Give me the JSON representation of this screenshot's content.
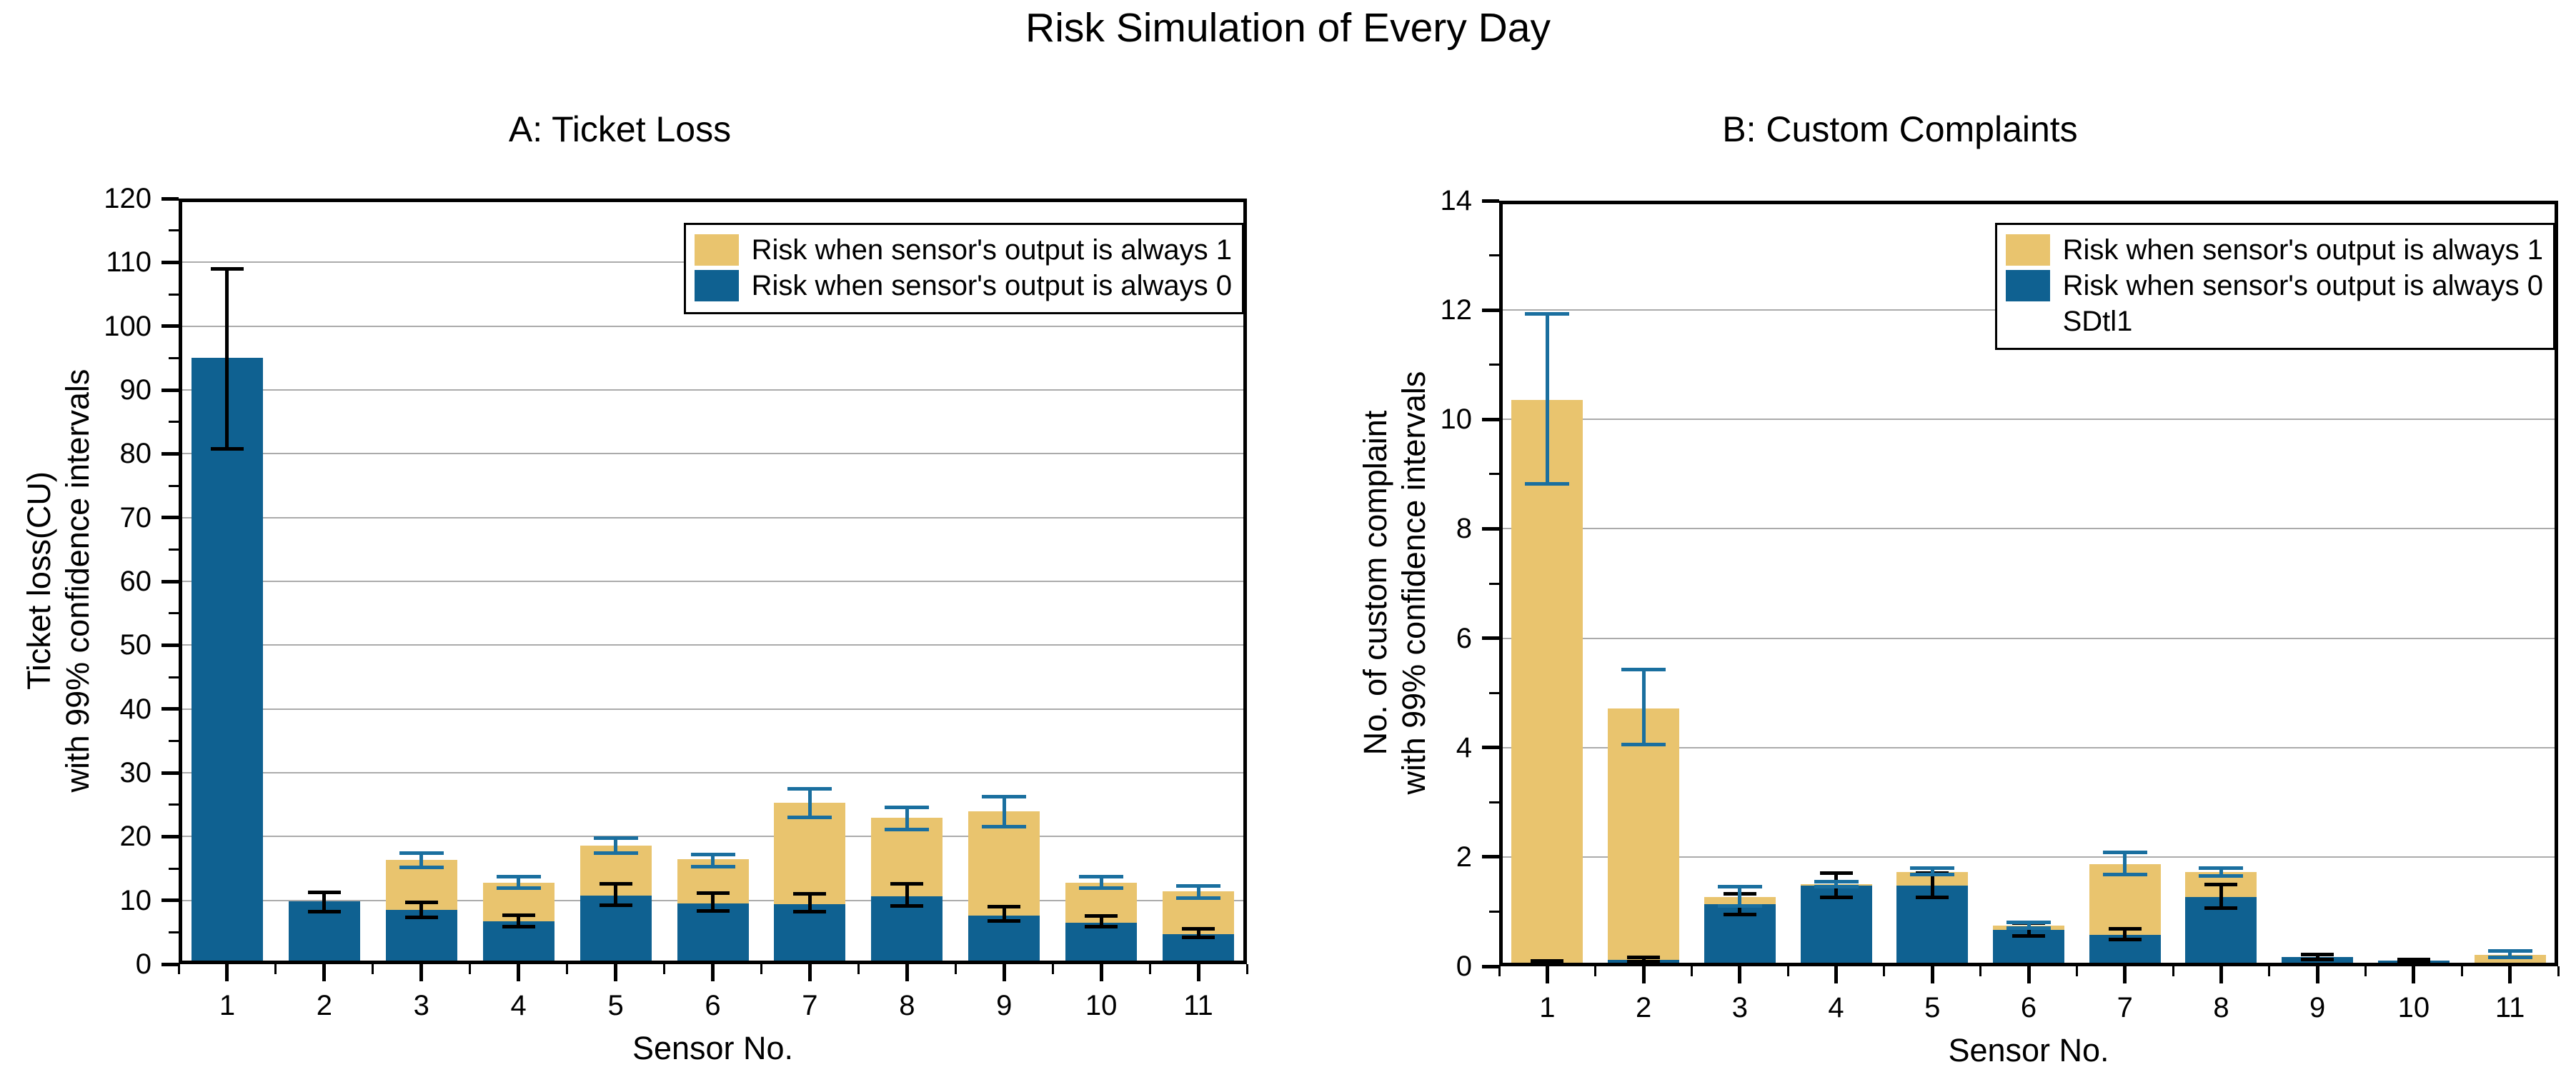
{
  "title": "Risk Simulation of Every Day",
  "colors": {
    "always1_fill": "#E9C46E",
    "always0_fill": "#0F6191",
    "err_on_always1": "#1A6F9F",
    "err_on_always0": "#000000",
    "gridline": "#ABABAB",
    "axis": "#000000",
    "background": "#FFFFFF"
  },
  "chart_data": [
    {
      "type": "bar",
      "title": "A: Ticket Loss",
      "xlabel": "Sensor No.",
      "ylabel_line1": "Ticket loss(CU)",
      "ylabel_line2": "with 99% confidence intervals",
      "ymin": 0,
      "ymax": 120,
      "ystep": 10,
      "yminor": 5,
      "y_ticks": [
        0,
        10,
        20,
        30,
        40,
        50,
        60,
        70,
        80,
        90,
        100,
        110,
        120
      ],
      "categories": [
        "1",
        "2",
        "3",
        "4",
        "5",
        "6",
        "7",
        "8",
        "9",
        "10",
        "11"
      ],
      "grid": true,
      "legend_position": "top-right",
      "legend": [
        {
          "label": "Risk when sensor's output is always 1",
          "swatch": "always1_fill"
        },
        {
          "label": "Risk when sensor's output is always 0",
          "swatch": "always0_fill"
        }
      ],
      "series": [
        {
          "name": "Risk when sensor's output is always 1",
          "fill": "always1_fill",
          "err_color": "err_on_always1",
          "values": [
            null,
            null,
            16.3,
            12.8,
            18.6,
            16.4,
            25.3,
            22.9,
            24.0,
            12.8,
            11.4
          ],
          "err_lo": [
            null,
            null,
            15.2,
            11.9,
            17.4,
            15.3,
            23.0,
            21.1,
            21.6,
            11.9,
            10.4
          ],
          "err_hi": [
            null,
            null,
            17.4,
            13.7,
            19.8,
            17.2,
            27.5,
            24.6,
            26.3,
            13.7,
            12.3
          ]
        },
        {
          "name": "Risk when sensor's output is always 0",
          "fill": "always0_fill",
          "err_color": "err_on_always0",
          "values": [
            95.0,
            9.8,
            8.5,
            6.7,
            10.7,
            9.5,
            9.4,
            10.6,
            7.6,
            6.5,
            4.7
          ],
          "err_lo": [
            80.8,
            8.2,
            7.3,
            5.9,
            9.2,
            8.3,
            8.2,
            9.1,
            6.8,
            5.9,
            4.2
          ],
          "err_hi": [
            109.0,
            11.2,
            9.7,
            7.7,
            12.6,
            11.1,
            11.0,
            12.6,
            9.0,
            7.6,
            5.5
          ]
        }
      ]
    },
    {
      "type": "bar",
      "title": "B: Custom Complaints",
      "xlabel": "Sensor No.",
      "ylabel_line1": "No. of custom complaint",
      "ylabel_line2": "with 99% confidence intervals",
      "ymin": 0,
      "ymax": 14,
      "ystep": 2,
      "yminor": 1,
      "y_ticks": [
        0,
        2,
        4,
        6,
        8,
        10,
        12,
        14
      ],
      "categories": [
        "1",
        "2",
        "3",
        "4",
        "5",
        "6",
        "7",
        "8",
        "9",
        "10",
        "11"
      ],
      "grid": true,
      "legend_position": "top-right",
      "legend": [
        {
          "label": "Risk when sensor's output is always 1",
          "swatch": "always1_fill"
        },
        {
          "label": "Risk when sensor's output is always 0",
          "swatch": "always0_fill"
        },
        {
          "label": "SDtl1",
          "swatch": "none"
        }
      ],
      "series": [
        {
          "name": "Risk when sensor's output is always 1",
          "fill": "always1_fill",
          "err_color": "err_on_always1",
          "values": [
            10.35,
            4.72,
            1.27,
            1.5,
            1.73,
            0.75,
            1.87,
            1.72,
            null,
            null,
            0.21
          ],
          "err_lo": [
            8.82,
            4.05,
            1.1,
            1.45,
            1.68,
            0.7,
            1.68,
            1.65,
            null,
            null,
            0.16
          ],
          "err_hi": [
            11.93,
            5.42,
            1.45,
            1.55,
            1.79,
            0.8,
            2.08,
            1.8,
            null,
            null,
            0.28
          ]
        },
        {
          "name": "Risk when sensor's output is always 0",
          "fill": "always0_fill",
          "err_color": "err_on_always0",
          "values": [
            0.06,
            0.12,
            1.13,
            1.47,
            1.47,
            0.66,
            0.58,
            1.27,
            0.17,
            0.1,
            null
          ],
          "err_lo": [
            0.04,
            0.09,
            0.95,
            1.26,
            1.26,
            0.56,
            0.49,
            1.07,
            0.13,
            0.08,
            null
          ],
          "err_hi": [
            0.1,
            0.16,
            1.32,
            1.7,
            1.7,
            0.79,
            0.68,
            1.49,
            0.22,
            0.13,
            null
          ]
        }
      ]
    }
  ]
}
